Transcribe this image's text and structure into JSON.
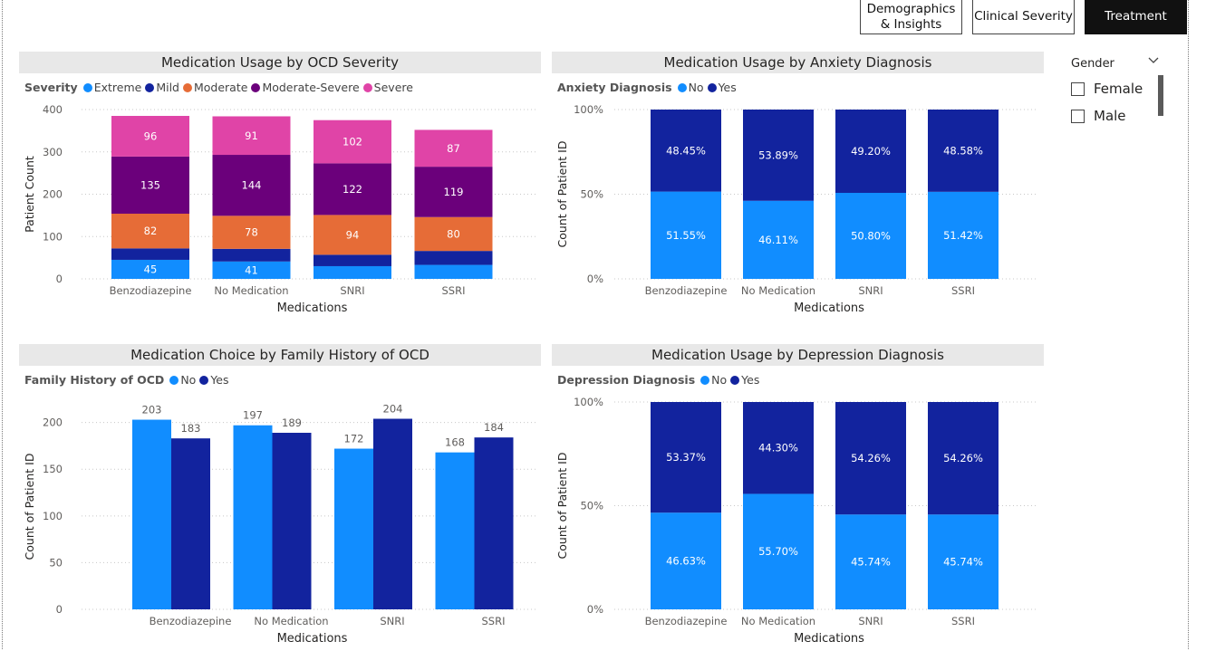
{
  "nav": {
    "btn1": "Demographics & Insights",
    "btn2": "Clinical Severity",
    "btn3": "Treatment"
  },
  "slicer": {
    "title": "Gender",
    "options": [
      "Female",
      "Male"
    ]
  },
  "chart_data": [
    {
      "type": "bar",
      "stacked": true,
      "title": "Medication Usage by OCD Severity",
      "legend_title": "Severity",
      "xlabel": "Medications",
      "ylabel": "Patient Count",
      "ylim": [
        0,
        400
      ],
      "yticks": [
        0,
        100,
        200,
        300,
        400
      ],
      "categories": [
        "Benzodiazepine",
        "No Medication",
        "SNRI",
        "SSRI"
      ],
      "series": [
        {
          "name": "Extreme",
          "color": "#118DFF",
          "values": [
            45,
            41,
            30,
            33
          ],
          "labels": [
            "45",
            "41",
            "",
            ""
          ]
        },
        {
          "name": "Mild",
          "color": "#12239E",
          "values": [
            27,
            30,
            27,
            33
          ],
          "labels": [
            "",
            "",
            "",
            ""
          ]
        },
        {
          "name": "Moderate",
          "color": "#E66C37",
          "values": [
            82,
            78,
            94,
            80
          ],
          "labels": [
            "82",
            "78",
            "94",
            "80"
          ]
        },
        {
          "name": "Moderate-Severe",
          "color": "#6B007B",
          "values": [
            135,
            144,
            122,
            119
          ],
          "labels": [
            "135",
            "144",
            "122",
            "119"
          ]
        },
        {
          "name": "Severe",
          "color": "#E044A7",
          "values": [
            96,
            91,
            102,
            87
          ],
          "labels": [
            "96",
            "91",
            "102",
            "87"
          ]
        }
      ]
    },
    {
      "type": "bar",
      "stacked": true,
      "percent": true,
      "title": "Medication Usage by Anxiety Diagnosis",
      "legend_title": "Anxiety Diagnosis",
      "xlabel": "Medications",
      "ylabel": "Count of Patient ID",
      "ylim": [
        0,
        100
      ],
      "yticks": [
        "0%",
        "50%",
        "100%"
      ],
      "categories": [
        "Benzodiazepine",
        "No Medication",
        "SNRI",
        "SSRI"
      ],
      "series": [
        {
          "name": "No",
          "color": "#118DFF",
          "values": [
            51.55,
            46.11,
            50.8,
            51.42
          ],
          "labels": [
            "51.55%",
            "46.11%",
            "50.80%",
            "51.42%"
          ]
        },
        {
          "name": "Yes",
          "color": "#12239E",
          "values": [
            48.45,
            53.89,
            49.2,
            48.58
          ],
          "labels": [
            "48.45%",
            "53.89%",
            "49.20%",
            "48.58%"
          ]
        }
      ]
    },
    {
      "type": "bar",
      "stacked": false,
      "title": "Medication Choice by Family History of OCD",
      "legend_title": "Family History of OCD",
      "xlabel": "Medications",
      "ylabel": "Count of Patient ID",
      "ylim": [
        0,
        220
      ],
      "yticks": [
        0,
        50,
        100,
        150,
        200
      ],
      "categories": [
        "Benzodiazepine",
        "No Medication",
        "SNRI",
        "SSRI"
      ],
      "series": [
        {
          "name": "No",
          "color": "#118DFF",
          "values": [
            203,
            197,
            172,
            168
          ],
          "labels": [
            "203",
            "197",
            "172",
            "168"
          ]
        },
        {
          "name": "Yes",
          "color": "#12239E",
          "values": [
            183,
            189,
            204,
            184
          ],
          "labels": [
            "183",
            "189",
            "204",
            "184"
          ]
        }
      ]
    },
    {
      "type": "bar",
      "stacked": true,
      "percent": true,
      "title": "Medication Usage by Depression Diagnosis",
      "legend_title": "Depression Diagnosis",
      "xlabel": "Medications",
      "ylabel": "Count of Patient ID",
      "ylim": [
        0,
        100
      ],
      "yticks": [
        "0%",
        "50%",
        "100%"
      ],
      "categories": [
        "Benzodiazepine",
        "No Medication",
        "SNRI",
        "SSRI"
      ],
      "series": [
        {
          "name": "No",
          "color": "#118DFF",
          "values": [
            46.63,
            55.7,
            45.74,
            45.74
          ],
          "labels": [
            "46.63%",
            "55.70%",
            "45.74%",
            "45.74%"
          ]
        },
        {
          "name": "Yes",
          "color": "#12239E",
          "values": [
            53.37,
            44.3,
            54.26,
            54.26
          ],
          "labels": [
            "53.37%",
            "44.30%",
            "54.26%",
            "54.26%"
          ]
        }
      ]
    }
  ]
}
